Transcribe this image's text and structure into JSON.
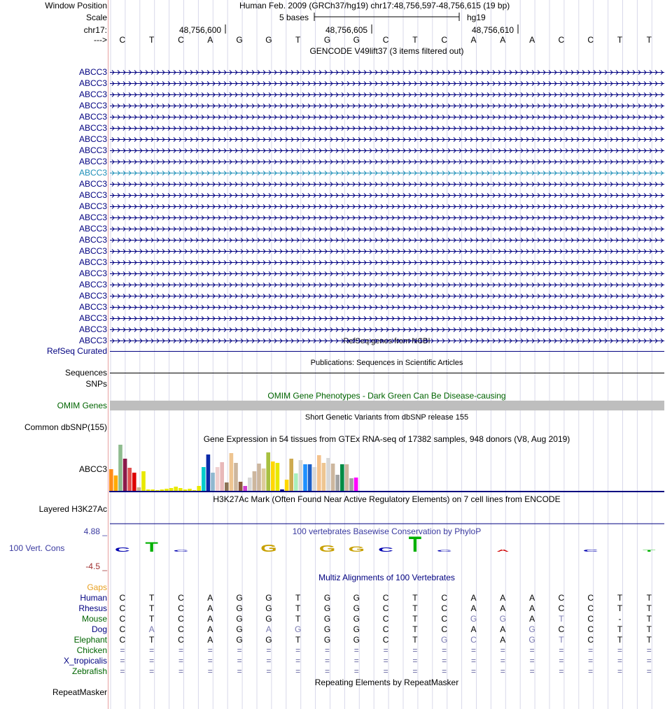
{
  "header": {
    "window_position_label": "Window Position",
    "window_position_text": "Human Feb. 2009 (GRCh37/hg19)   chr17:48,756,597-48,756,615 (19 bp)",
    "scale_label": "Scale",
    "scale_text": "5 bases",
    "assembly": "hg19",
    "chrom_label": "chr17:",
    "ticks": [
      "48,756,600",
      "48,756,605",
      "48,756,610"
    ],
    "strand_label": "--->",
    "bases": [
      "C",
      "T",
      "C",
      "A",
      "G",
      "G",
      "T",
      "G",
      "G",
      "C",
      "T",
      "C",
      "A",
      "A",
      "A",
      "C",
      "C",
      "T",
      "T"
    ]
  },
  "gencode": {
    "title": "GENCODE V49lift37 (3 items filtered out)",
    "gene_labels": [
      "ABCC3",
      "ABCC3",
      "ABCC3",
      "ABCC3",
      "ABCC3",
      "ABCC3",
      "ABCC3",
      "ABCC3",
      "ABCC3",
      "ABCC3",
      "ABCC3",
      "ABCC3",
      "ABCC3",
      "ABCC3",
      "ABCC3",
      "ABCC3",
      "ABCC3",
      "ABCC3",
      "ABCC3",
      "ABCC3",
      "ABCC3",
      "ABCC3",
      "ABCC3",
      "ABCC3",
      "ABCC3"
    ],
    "highlighted_index": 9,
    "line_color": "#000080",
    "highlight_color": "#1d8fb8"
  },
  "refseq": {
    "title": "RefSeq genes from NCBI",
    "label": "RefSeq Curated"
  },
  "publications": {
    "title": "Publications: Sequences in Scientific Articles",
    "label1": "Sequences",
    "label2": "SNPs"
  },
  "omim": {
    "title": "OMIM Gene Phenotypes - Dark Green Can Be Disease-causing",
    "label": "OMIM Genes",
    "color": "#006400"
  },
  "dbsnp": {
    "title": "Short Genetic Variants from dbSNP release 155",
    "label": "Common dbSNP(155)"
  },
  "gtex": {
    "title": "Gene Expression in 54 tissues from GTEx RNA-seq of 17382 samples, 948 donors (V8, Aug 2019)",
    "label": "ABCC3"
  },
  "chart_data": {
    "type": "bar",
    "title": "Gene Expression in 54 tissues from GTEx RNA-seq of 17382 samples, 948 donors (V8, Aug 2019)",
    "ylabel": "",
    "ylim": [
      0,
      66
    ],
    "values": [
      31,
      22,
      66,
      46,
      33,
      26,
      5,
      28,
      2,
      2,
      1,
      2,
      3,
      4,
      6,
      4,
      2,
      3,
      1,
      7,
      34,
      52,
      26,
      34,
      41,
      12,
      54,
      40,
      13,
      7,
      19,
      28,
      39,
      32,
      55,
      42,
      40,
      2,
      16,
      46,
      25,
      44,
      38,
      38,
      34,
      51,
      40,
      47,
      39,
      23,
      38,
      38,
      18,
      19
    ],
    "colors": [
      "#ff8c1a",
      "#ffaa00",
      "#8fbc8f",
      "#8b1a4a",
      "#e05050",
      "#dd0000",
      "#c8b08c",
      "#e8e800",
      "#e8e800",
      "#e8e800",
      "#e8e800",
      "#e8e800",
      "#e8e800",
      "#e8e800",
      "#e8e800",
      "#e8e800",
      "#e8e800",
      "#e8e800",
      "#e8e800",
      "#e8e800",
      "#00cccc",
      "#0a2aa8",
      "#8fb8d0",
      "#f0d0d0",
      "#e8b8b8",
      "#8b7355",
      "#eec591",
      "#cdb79e",
      "#8b5a3c",
      "#d040d0",
      "#d8d8d8",
      "#cdb79e",
      "#cdb79e",
      "#ddcc99",
      "#a8c040",
      "#ffd700",
      "#e8e800",
      "#000080",
      "#ffd700",
      "#cdaa50",
      "#aaeebb",
      "#d8d8d8",
      "#1e90ff",
      "#1c5fc8",
      "#d8d8d8",
      "#f4c28c",
      "#eec591",
      "#d8d8d8",
      "#cdb79e",
      "#a3a3a3",
      "#008b45",
      "#cdb79e",
      "#a0a0a0",
      "#ff00ff"
    ]
  },
  "h3k27ac": {
    "title": "H3K27Ac Mark (Often Found Near Active Regulatory Elements) on 7 cell lines from ENCODE",
    "label": "Layered H3K27Ac"
  },
  "phylop": {
    "title": "100 vertebrates Basewise Conservation by PhyloP",
    "label": "100 Vert. Cons",
    "ymax_label": "4.88 _",
    "ymin_label": "-4.5 _",
    "scores": [
      0.7,
      1.6,
      0.3,
      0,
      0,
      1.2,
      0,
      1.1,
      0.9,
      0.7,
      2.6,
      0.2,
      0,
      -0.4,
      0,
      0,
      0.4,
      0,
      0.2
    ]
  },
  "multiz": {
    "title": "Multiz Alignments of 100 Vertebrates",
    "gaps_label": "Gaps",
    "species": [
      {
        "name": "Human",
        "color": "#000080",
        "row": "CTCAGGTGGCTCAAACCTT"
      },
      {
        "name": "Rhesus",
        "color": "#000080",
        "row": "CTCAGGTGGCTCAAACCTT"
      },
      {
        "name": "Mouse",
        "color": "#006400",
        "row": "CTCAGGTGGCTCGGATC-T"
      },
      {
        "name": "Dog",
        "color": "#000080",
        "row": "CACAGAGGGCTCAAGCCTT"
      },
      {
        "name": "Elephant",
        "color": "#006400",
        "row": "CTCAGGTGGCTGCAGTCTT"
      },
      {
        "name": "Chicken",
        "color": "#006400",
        "row": "==================="
      },
      {
        "name": "X_tropicalis",
        "color": "#000080",
        "row": "==================="
      },
      {
        "name": "Zebrafish",
        "color": "#006400",
        "row": "==================="
      }
    ]
  },
  "repeatmasker": {
    "title": "Repeating Elements by RepeatMasker",
    "label": "RepeatMasker"
  }
}
